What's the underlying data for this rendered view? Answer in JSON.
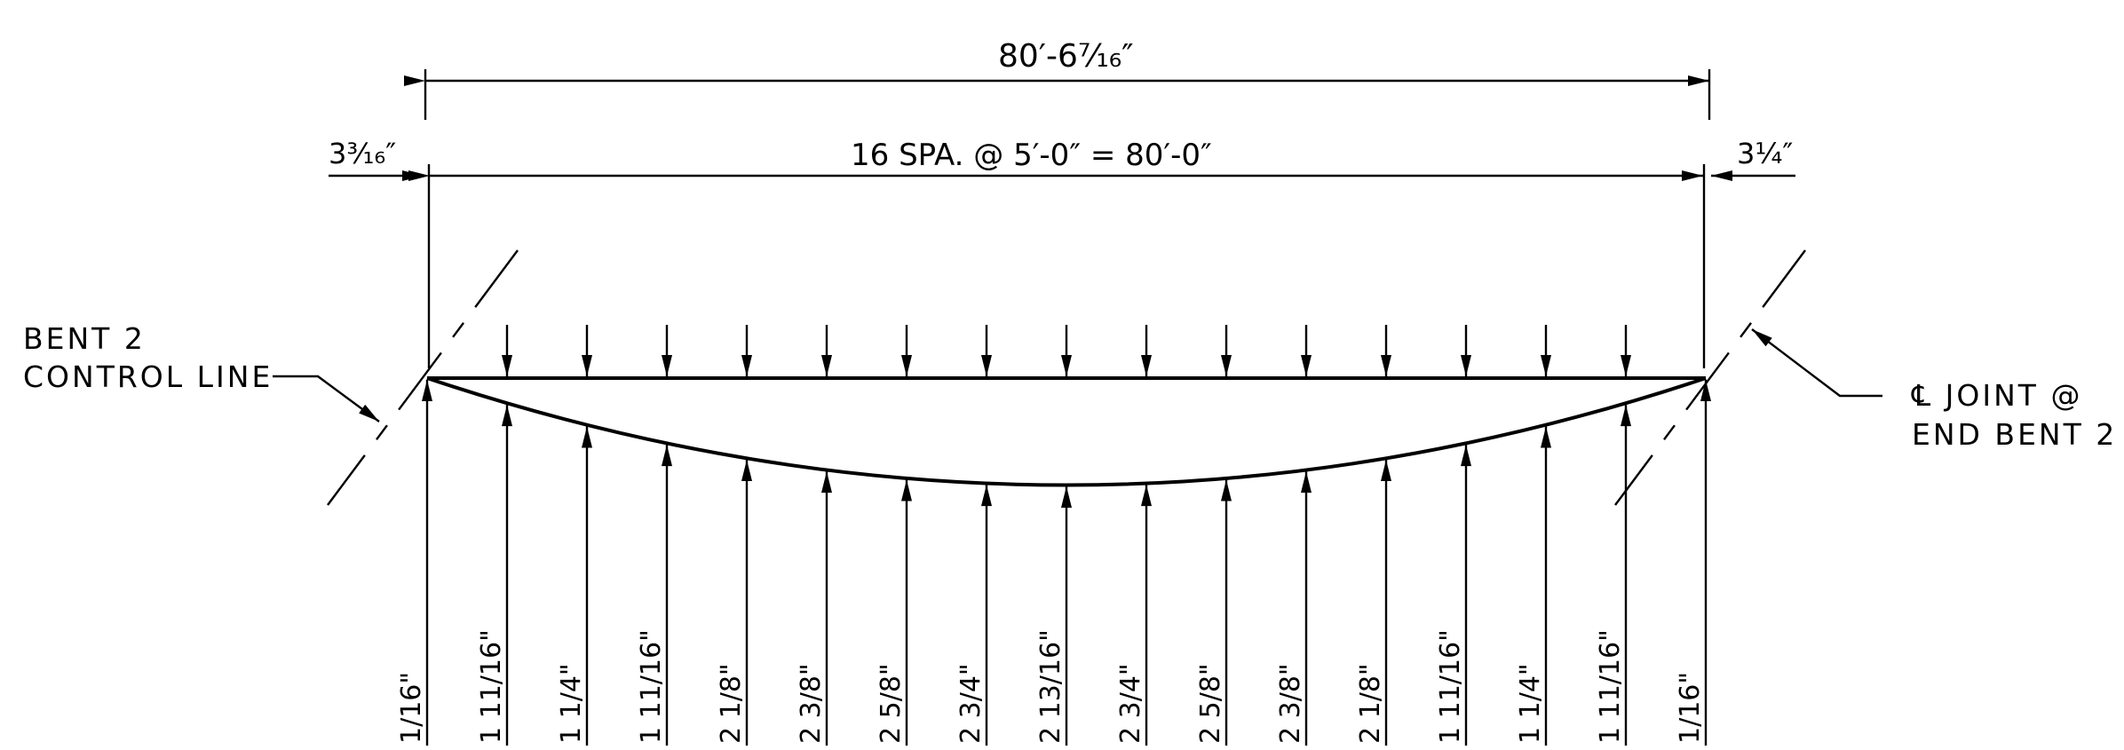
{
  "dimensions": {
    "overall": "80′-6⁷⁄₁₆″",
    "spacing": "16 SPA. @ 5′-0″ = 80′-0″",
    "left_offset": "3³⁄₁₆″",
    "right_offset": "3¼″"
  },
  "labels": {
    "left_line1": "BENT 2",
    "left_line2": "CONTROL LINE",
    "right_line1": "℄ JOINT @",
    "right_line2": "END BENT 2"
  },
  "stations": [
    {
      "label": "1/16\""
    },
    {
      "label": "1 11/16\""
    },
    {
      "label": "1 1/4\""
    },
    {
      "label": "1 11/16\""
    },
    {
      "label": "2 1/8\""
    },
    {
      "label": "2 3/8\""
    },
    {
      "label": "2 5/8\""
    },
    {
      "label": "2 3/4\""
    },
    {
      "label": "2 13/16\""
    },
    {
      "label": "2 3/4\""
    },
    {
      "label": "2 5/8\""
    },
    {
      "label": "2 3/8\""
    },
    {
      "label": "2 1/8\""
    },
    {
      "label": "1 11/16\""
    },
    {
      "label": "1 1/4\""
    },
    {
      "label": "1 11/16\""
    },
    {
      "label": "1/16\""
    }
  ]
}
